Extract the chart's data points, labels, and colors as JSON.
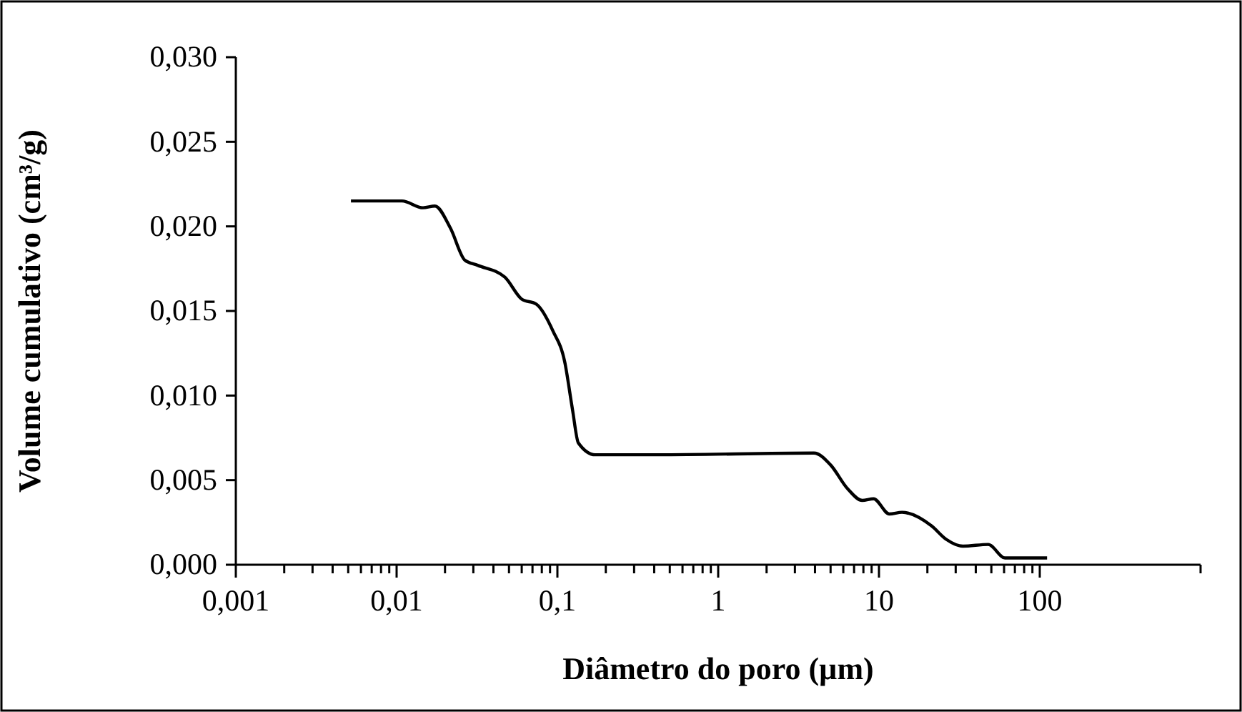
{
  "chart_data": {
    "type": "line",
    "xlabel": "Diâmetro do poro (µm)",
    "ylabel": "Volume cumulativo (cm³/g)",
    "log": "x",
    "grid": false,
    "marker": "none",
    "line_style": "solid",
    "xlim": [
      0.001,
      1000
    ],
    "ylim": [
      0,
      0.03
    ],
    "xticks": [
      {
        "value": 0.001,
        "label": "0,001"
      },
      {
        "value": 0.002,
        "label": null
      },
      {
        "value": 0.003,
        "label": null
      },
      {
        "value": 0.004,
        "label": null
      },
      {
        "value": 0.005,
        "label": null
      },
      {
        "value": 0.006,
        "label": null
      },
      {
        "value": 0.007,
        "label": null
      },
      {
        "value": 0.008,
        "label": null
      },
      {
        "value": 0.009,
        "label": null
      },
      {
        "value": 0.01,
        "label": "0,01"
      },
      {
        "value": 0.02,
        "label": null
      },
      {
        "value": 0.03,
        "label": null
      },
      {
        "value": 0.04,
        "label": null
      },
      {
        "value": 0.05,
        "label": null
      },
      {
        "value": 0.06,
        "label": null
      },
      {
        "value": 0.07,
        "label": null
      },
      {
        "value": 0.08,
        "label": null
      },
      {
        "value": 0.09,
        "label": null
      },
      {
        "value": 0.1,
        "label": "0,1"
      },
      {
        "value": 0.2,
        "label": null
      },
      {
        "value": 0.3,
        "label": null
      },
      {
        "value": 0.4,
        "label": null
      },
      {
        "value": 0.5,
        "label": null
      },
      {
        "value": 0.6,
        "label": null
      },
      {
        "value": 0.7,
        "label": null
      },
      {
        "value": 0.8,
        "label": null
      },
      {
        "value": 0.9,
        "label": null
      },
      {
        "value": 1,
        "label": "1"
      },
      {
        "value": 2,
        "label": null
      },
      {
        "value": 3,
        "label": null
      },
      {
        "value": 4,
        "label": null
      },
      {
        "value": 5,
        "label": null
      },
      {
        "value": 6,
        "label": null
      },
      {
        "value": 7,
        "label": null
      },
      {
        "value": 8,
        "label": null
      },
      {
        "value": 9,
        "label": null
      },
      {
        "value": 10,
        "label": "10"
      },
      {
        "value": 20,
        "label": null
      },
      {
        "value": 30,
        "label": null
      },
      {
        "value": 40,
        "label": null
      },
      {
        "value": 50,
        "label": null
      },
      {
        "value": 60,
        "label": null
      },
      {
        "value": 70,
        "label": null
      },
      {
        "value": 80,
        "label": null
      },
      {
        "value": 90,
        "label": null
      },
      {
        "value": 100,
        "label": "100"
      },
      {
        "value": 1000,
        "label": null
      }
    ],
    "yticks": [
      {
        "value": 0,
        "label": "0,000"
      },
      {
        "value": 0.005,
        "label": "0,005"
      },
      {
        "value": 0.01,
        "label": "0,010"
      },
      {
        "value": 0.015,
        "label": "0,015"
      },
      {
        "value": 0.02,
        "label": "0,020"
      },
      {
        "value": 0.025,
        "label": "0,025"
      },
      {
        "value": 0.03,
        "label": "0,030"
      }
    ],
    "x": [
      0.0052,
      0.0108,
      0.0146,
      0.0173,
      0.0216,
      0.0266,
      0.0319,
      0.0471,
      0.06,
      0.074,
      0.094,
      0.111,
      0.124,
      0.135,
      0.172,
      0.42,
      3.94,
      5.0,
      6.37,
      7.87,
      9.25,
      11.6,
      13.9,
      21.2,
      26.2,
      33.3,
      47.8,
      60.8,
      111
    ],
    "series": [
      {
        "color": "#000000",
        "values": [
          0.0215,
          0.0215,
          0.0211,
          0.0212,
          0.0199,
          0.018,
          0.0177,
          0.017,
          0.0157,
          0.0154,
          0.0138,
          0.012,
          0.0092,
          0.0072,
          0.0065,
          0.0065,
          0.0066,
          0.0059,
          0.0045,
          0.0038,
          0.0039,
          0.003,
          0.0031,
          0.0023,
          0.0015,
          0.0011,
          0.0012,
          0.0004,
          0.0004
        ]
      }
    ]
  }
}
